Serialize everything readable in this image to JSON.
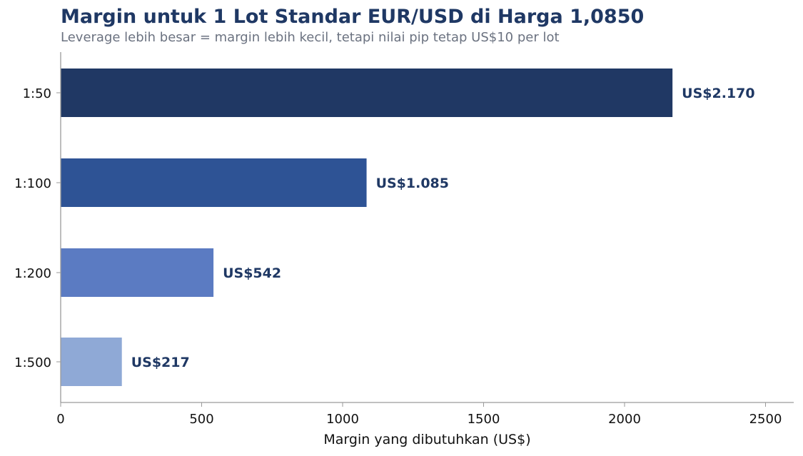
{
  "header": {
    "title": "Margin untuk 1 Lot Standar EUR/USD di Harga 1,0850",
    "subtitle": "Leverage lebih besar = margin lebih kecil, tetapi nilai pip tetap US$10 per lot"
  },
  "colors": {
    "title": "#1f3864",
    "subtitle": "#6b7280",
    "data_label": "#1f3864",
    "axis": "#9a9a9a"
  },
  "chart_data": {
    "type": "bar",
    "orientation": "horizontal",
    "title": "Margin untuk 1 Lot Standar EUR/USD di Harga 1,0850",
    "subtitle": "Leverage lebih besar = margin lebih kecil, tetapi nilai pip tetap US$10 per lot",
    "xlabel": "Margin yang dibutuhkan (US$)",
    "ylabel": "",
    "xlim": [
      0,
      2600
    ],
    "xticks": [
      0,
      500,
      1000,
      1500,
      2000,
      2500
    ],
    "grid": false,
    "categories": [
      "1:50",
      "1:100",
      "1:200",
      "1:500"
    ],
    "values": [
      2170,
      1085,
      542,
      217
    ],
    "data_labels": [
      "US$2.170",
      "US$1.085",
      "US$542",
      "US$217"
    ],
    "bar_colors": [
      "#203864",
      "#2e5395",
      "#5b7bc2",
      "#8fa9d6"
    ]
  }
}
